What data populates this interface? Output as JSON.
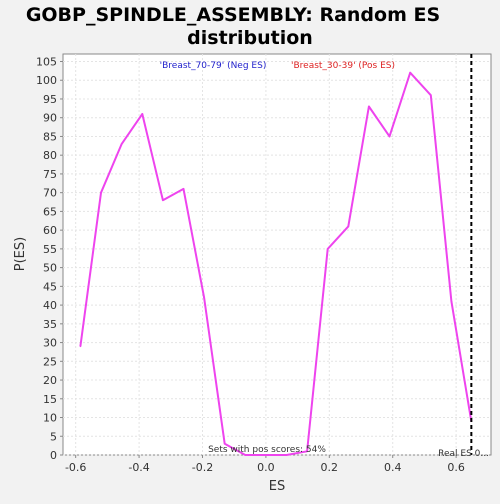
{
  "chart_data": {
    "type": "line",
    "title": [
      "GOBP_SPINDLE_ASSEMBLY: Random ES",
      "distribution"
    ],
    "xlabel": "ES",
    "ylabel": "P(ES)",
    "xlim": [
      -0.64,
      0.71
    ],
    "ylim": [
      0,
      107
    ],
    "x_ticks": [
      "-0.6",
      "-0.4",
      "-0.2",
      "0.0",
      "0.2",
      "0.4",
      "0.6"
    ],
    "y_ticks": [
      "0",
      "5",
      "10",
      "15",
      "20",
      "25",
      "30",
      "35",
      "40",
      "45",
      "50",
      "55",
      "60",
      "65",
      "70",
      "75",
      "80",
      "85",
      "90",
      "95",
      "100",
      "105"
    ],
    "grid": true,
    "legend": [
      {
        "label": "'Breast_70-79' (Neg ES)",
        "color": "#2222cc"
      },
      {
        "label": "'Breast_30-39' (Pos ES)",
        "color": "#dd2222"
      }
    ],
    "series": [
      {
        "color": "#ee44ee",
        "x": [
          -0.585,
          -0.52,
          -0.455,
          -0.39,
          -0.325,
          -0.26,
          -0.195,
          -0.13,
          -0.065,
          0.0,
          0.065,
          0.13,
          0.195,
          0.26,
          0.325,
          0.39,
          0.455,
          0.52,
          0.585,
          0.648
        ],
        "y": [
          29,
          70,
          83,
          91,
          68,
          71,
          42,
          3,
          0,
          0,
          0,
          1,
          55,
          61,
          93,
          85,
          102,
          96,
          41,
          9
        ]
      }
    ],
    "annotations": {
      "sets_with_pos": "Sets with pos scores: 54%",
      "real_es_label": "Real ES 0...",
      "real_es_value": 0.648
    }
  }
}
